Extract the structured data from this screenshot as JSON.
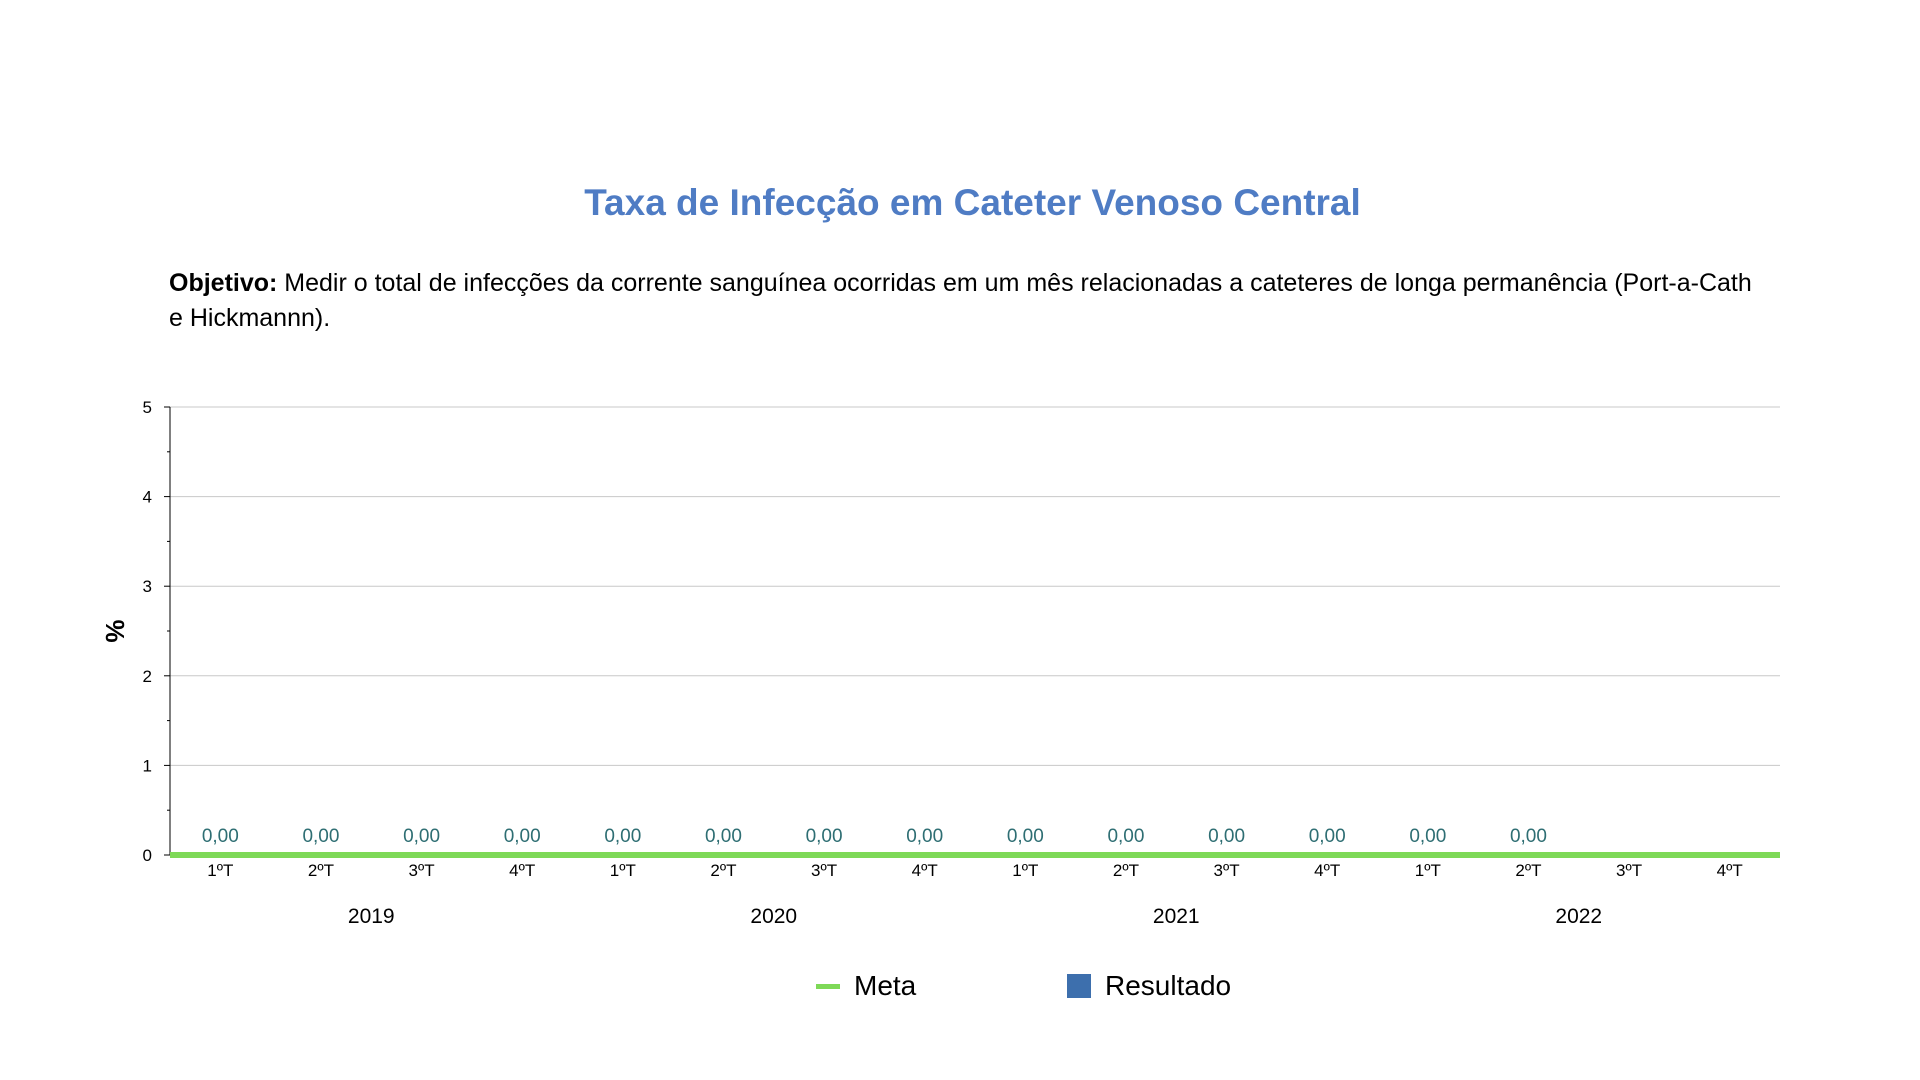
{
  "title": "Taxa de Infecção em Cateter Venoso Central",
  "objective": {
    "label": "Objetivo:",
    "text": " Medir o total de infecções da corrente sanguínea ocorridas em um mês relacionadas a cateteres de longa permanência (Port-a-Cath e Hickmannn)."
  },
  "colors": {
    "title": "#4f7cc4",
    "meta": "#7ed957",
    "resultado": "#3d6fad",
    "data_label": "#2e6e73"
  },
  "chart_data": {
    "type": "bar",
    "ylabel": "%",
    "ylim": [
      0,
      5
    ],
    "yticks": [
      "0",
      "1",
      "2",
      "3",
      "4",
      "5"
    ],
    "categories": [
      "1ºT",
      "2ºT",
      "3ºT",
      "4ºT",
      "1ºT",
      "2ºT",
      "3ºT",
      "4ºT",
      "1ºT",
      "2ºT",
      "3ºT",
      "4ºT",
      "1ºT",
      "2ºT",
      "3ºT",
      "4ºT"
    ],
    "groups": [
      "2019",
      "2020",
      "2021",
      "2022"
    ],
    "series": [
      {
        "name": "Meta",
        "kind": "line",
        "values": [
          0,
          0,
          0,
          0,
          0,
          0,
          0,
          0,
          0,
          0,
          0,
          0,
          0,
          0,
          0,
          0
        ]
      },
      {
        "name": "Resultado",
        "kind": "bar",
        "values": [
          0,
          0,
          0,
          0,
          0,
          0,
          0,
          0,
          0,
          0,
          0,
          0,
          0,
          0,
          null,
          null
        ],
        "labels": [
          "0,00",
          "0,00",
          "0,00",
          "0,00",
          "0,00",
          "0,00",
          "0,00",
          "0,00",
          "0,00",
          "0,00",
          "0,00",
          "0,00",
          "0,00",
          "0,00",
          "",
          ""
        ]
      }
    ],
    "grid": true,
    "legend": "bottom"
  },
  "legend": {
    "meta": "Meta",
    "resultado": "Resultado"
  }
}
